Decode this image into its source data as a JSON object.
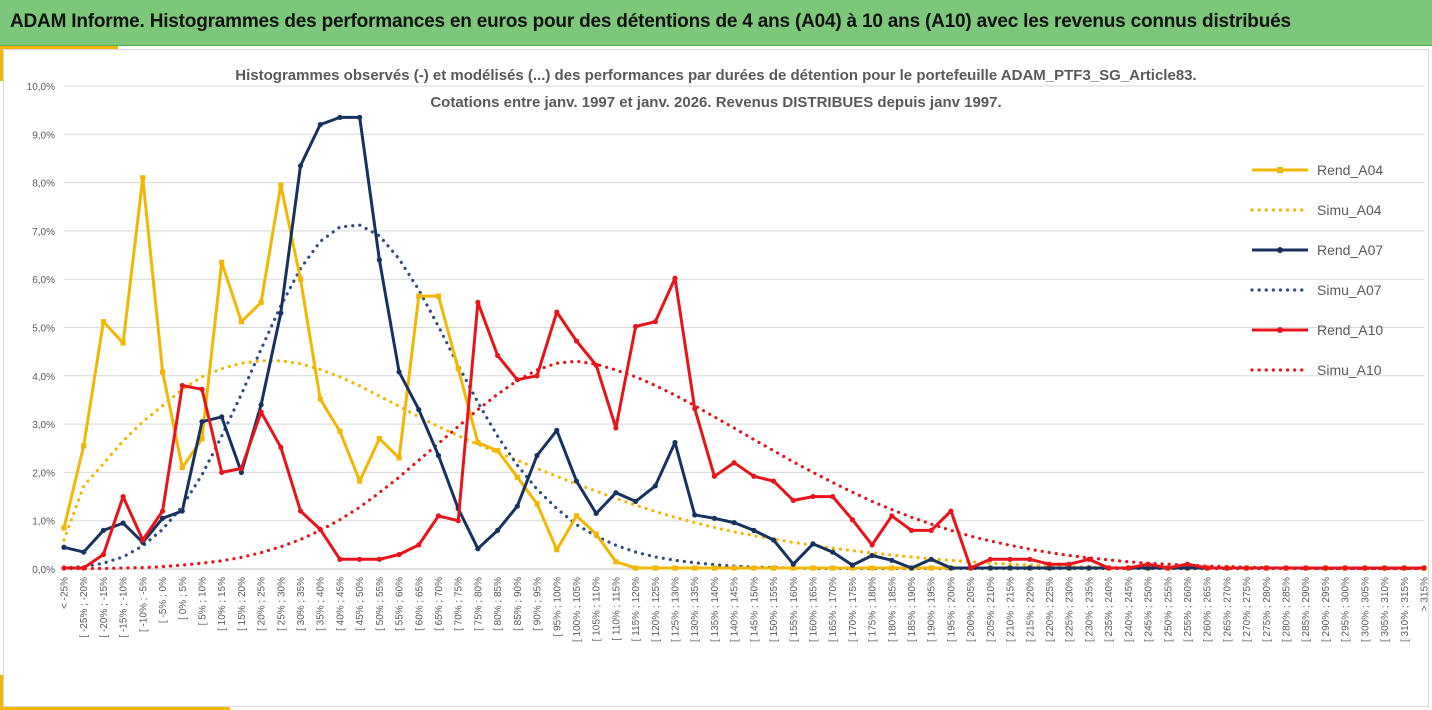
{
  "banner": {
    "title": "ADAM Informe. Histogrammes des performances en euros pour des détentions de 4 ans (A04) à 10 ans (A10) avec les revenus connus distribués"
  },
  "chart_data": {
    "type": "line",
    "title_lines": [
      "Histogrammes observés (-) et modélisés (...) des performances par durées de détention pour le portefeuille ADAM_PTF3_SG_Article83.",
      "Cotations entre janv. 1997 et janv. 2026. Revenus DISTRIBUES depuis janv 1997."
    ],
    "ylim": [
      0,
      10
    ],
    "yticks": [
      "0,0%",
      "1,0%",
      "2,0%",
      "3,0%",
      "4,0%",
      "5,0%",
      "6,0%",
      "7,0%",
      "8,0%",
      "9,0%",
      "10,0%"
    ],
    "legend_position": "right",
    "categories": [
      "< -25%",
      "[ -25% ; -20%",
      "[ -20% ; -15%",
      "[ -15% ; -10%",
      "[ -10% ; -5%",
      "[ -5% ; 0%",
      "[ 0% ; 5%",
      "[ 5% ; 10%",
      "[ 10% ; 15%",
      "[ 15% ; 20%",
      "[ 20% ; 25%",
      "[ 25% ; 30%",
      "[ 30% ; 35%",
      "[ 35% ; 40%",
      "[ 40% ; 45%",
      "[ 45% ; 50%",
      "[ 50% ; 55%",
      "[ 55% ; 60%",
      "[ 60% ; 65%",
      "[ 65% ; 70%",
      "[ 70% ; 75%",
      "[ 75% ; 80%",
      "[ 80% ; 85%",
      "[ 85% ; 90%",
      "[ 90% ; 95%",
      "[ 95% ; 100%",
      "[ 100% ; 105%",
      "[ 105% ; 110%",
      "[ 110% ; 115%",
      "[ 115% ; 120%",
      "[ 120% ; 125%",
      "[ 125% ; 130%",
      "[ 130% ; 135%",
      "[ 135% ; 140%",
      "[ 140% ; 145%",
      "[ 145% ; 150%",
      "[ 150% ; 155%",
      "[ 155% ; 160%",
      "[ 160% ; 165%",
      "[ 165% ; 170%",
      "[ 170% ; 175%",
      "[ 175% ; 180%",
      "[ 180% ; 185%",
      "[ 185% ; 190%",
      "[ 190% ; 195%",
      "[ 195% ; 200%",
      "[ 200% ; 205%",
      "[ 205% ; 210%",
      "[ 210% ; 215%",
      "[ 215% ; 220%",
      "[ 220% ; 225%",
      "[ 225% ; 230%",
      "[ 230% ; 235%",
      "[ 235% ; 240%",
      "[ 240% ; 245%",
      "[ 245% ; 250%",
      "[ 250% ; 255%",
      "[ 255% ; 260%",
      "[ 260% ; 265%",
      "[ 265% ; 270%",
      "[ 270% ; 275%",
      "[ 275% ; 280%",
      "[ 280% ; 285%",
      "[ 285% ; 290%",
      "[ 290% ; 295%",
      "[ 295% ; 300%",
      "[ 300% ; 305%",
      "[ 305% ; 310%",
      "[ 310% ; 315%",
      "> 315%"
    ],
    "series": [
      {
        "name": "Rend_A04",
        "color": "#f2b705",
        "style": "solid",
        "marker": "square",
        "values": [
          0.85,
          2.55,
          5.12,
          4.68,
          8.1,
          4.08,
          2.1,
          2.7,
          6.35,
          5.12,
          5.52,
          7.95,
          6.0,
          3.52,
          2.85,
          1.82,
          2.7,
          2.3,
          5.65,
          5.65,
          4.15,
          2.62,
          2.45,
          1.9,
          1.35,
          0.4,
          1.1,
          0.72,
          0.15,
          0.02,
          0.02,
          0.02,
          0.02,
          0.02,
          0.02,
          0.02,
          0.02,
          0.02,
          0.02,
          0.02,
          0.02,
          0.02,
          0.02,
          0.02,
          0.02,
          0.02,
          0.02,
          0.02,
          0.02,
          0.02,
          0.02,
          0.02,
          0.02,
          0.02,
          0.02,
          0.02,
          0.02,
          0.02,
          0.02,
          0.02,
          0.02,
          0.02,
          0.02,
          0.02,
          0.02,
          0.02,
          0.02,
          0.02,
          0.02,
          0.02
        ]
      },
      {
        "name": "Simu_A04",
        "color": "#f2b705",
        "style": "dotted",
        "marker": "none",
        "values": [
          0.6,
          1.72,
          2.18,
          2.65,
          3.05,
          3.38,
          3.72,
          3.98,
          4.15,
          4.26,
          4.31,
          4.31,
          4.25,
          4.13,
          3.98,
          3.79,
          3.58,
          3.37,
          3.15,
          2.95,
          2.76,
          2.58,
          2.41,
          2.25,
          2.08,
          1.92,
          1.76,
          1.61,
          1.46,
          1.32,
          1.19,
          1.07,
          0.96,
          0.86,
          0.77,
          0.69,
          0.62,
          0.55,
          0.49,
          0.43,
          0.38,
          0.33,
          0.29,
          0.25,
          0.21,
          0.18,
          0.15,
          0.12,
          0.1,
          0.08,
          0.06,
          0.05,
          0.04,
          0.03,
          0.02,
          0.02,
          0.01,
          0.01,
          0.01,
          0.01,
          0.01,
          0.01,
          0.01,
          0.01,
          0.01,
          0.01,
          0.01,
          0.01,
          0.01,
          0.01
        ]
      },
      {
        "name": "Rend_A07",
        "color": "#17325e",
        "style": "solid",
        "marker": "circle",
        "values": [
          0.45,
          0.35,
          0.8,
          0.95,
          0.55,
          1.05,
          1.2,
          3.05,
          3.15,
          2.0,
          3.4,
          5.3,
          8.35,
          9.2,
          9.35,
          9.35,
          6.4,
          4.08,
          3.3,
          2.35,
          1.25,
          0.42,
          0.8,
          1.3,
          2.35,
          2.87,
          1.82,
          1.15,
          1.58,
          1.4,
          1.72,
          2.62,
          1.12,
          1.05,
          0.96,
          0.8,
          0.6,
          0.1,
          0.52,
          0.35,
          0.08,
          0.28,
          0.18,
          0.02,
          0.2,
          0.02,
          0.02,
          0.02,
          0.02,
          0.02,
          0.02,
          0.02,
          0.02,
          0.02,
          0.02,
          0.02,
          0.02,
          0.02,
          0.02,
          0.02,
          0.02,
          0.02,
          0.02,
          0.02,
          0.02,
          0.02,
          0.02,
          0.02,
          0.02,
          0.02
        ]
      },
      {
        "name": "Simu_A07",
        "color": "#2e4e7e",
        "style": "dotted",
        "marker": "none",
        "values": [
          0.02,
          0.05,
          0.12,
          0.25,
          0.48,
          0.82,
          1.3,
          1.95,
          2.75,
          3.62,
          4.55,
          5.45,
          6.22,
          6.78,
          7.08,
          7.12,
          6.9,
          6.42,
          5.78,
          5.02,
          4.22,
          3.45,
          2.75,
          2.15,
          1.65,
          1.25,
          0.92,
          0.68,
          0.49,
          0.35,
          0.25,
          0.18,
          0.13,
          0.09,
          0.06,
          0.04,
          0.03,
          0.02,
          0.01,
          0.01,
          0.01,
          0.01,
          0.01,
          0.01,
          0.01,
          0.01,
          0.01,
          0.01,
          0.01,
          0.01,
          0.01,
          0.01,
          0.01,
          0.01,
          0.01,
          0.01,
          0.01,
          0.01,
          0.01,
          0.01,
          0.01,
          0.01,
          0.01,
          0.01,
          0.01,
          0.01,
          0.01,
          0.01,
          0.01,
          0.01
        ]
      },
      {
        "name": "Rend_A10",
        "color": "#e8141b",
        "style": "solid",
        "marker": "circle",
        "values": [
          0.02,
          0.02,
          0.3,
          1.5,
          0.6,
          1.2,
          3.8,
          3.72,
          2.0,
          2.08,
          3.25,
          2.52,
          1.2,
          0.82,
          0.2,
          0.2,
          0.2,
          0.3,
          0.5,
          1.1,
          1.0,
          5.52,
          4.42,
          3.92,
          4.0,
          5.32,
          4.72,
          4.22,
          2.92,
          5.02,
          5.12,
          6.02,
          3.32,
          1.92,
          2.2,
          1.92,
          1.82,
          1.42,
          1.5,
          1.5,
          1.02,
          0.5,
          1.1,
          0.8,
          0.8,
          1.2,
          0.02,
          0.2,
          0.2,
          0.2,
          0.1,
          0.1,
          0.2,
          0.02,
          0.02,
          0.1,
          0.02,
          0.1,
          0.02,
          0.02,
          0.02,
          0.02,
          0.02,
          0.02,
          0.02,
          0.02,
          0.02,
          0.02,
          0.02,
          0.02
        ]
      },
      {
        "name": "Simu_A10",
        "color": "#e8141b",
        "style": "dotted",
        "marker": "none",
        "values": [
          0.01,
          0.01,
          0.01,
          0.02,
          0.03,
          0.05,
          0.08,
          0.12,
          0.17,
          0.24,
          0.34,
          0.46,
          0.61,
          0.8,
          1.02,
          1.28,
          1.58,
          1.9,
          2.25,
          2.6,
          2.95,
          3.3,
          3.62,
          3.9,
          4.12,
          4.26,
          4.3,
          4.24,
          4.12,
          3.98,
          3.8,
          3.6,
          3.38,
          3.15,
          2.92,
          2.68,
          2.45,
          2.22,
          2.0,
          1.79,
          1.59,
          1.4,
          1.23,
          1.07,
          0.93,
          0.8,
          0.68,
          0.58,
          0.49,
          0.41,
          0.34,
          0.28,
          0.23,
          0.19,
          0.15,
          0.12,
          0.1,
          0.08,
          0.06,
          0.05,
          0.04,
          0.03,
          0.02,
          0.02,
          0.01,
          0.01,
          0.01,
          0.01,
          0.01,
          0.01
        ]
      }
    ]
  }
}
